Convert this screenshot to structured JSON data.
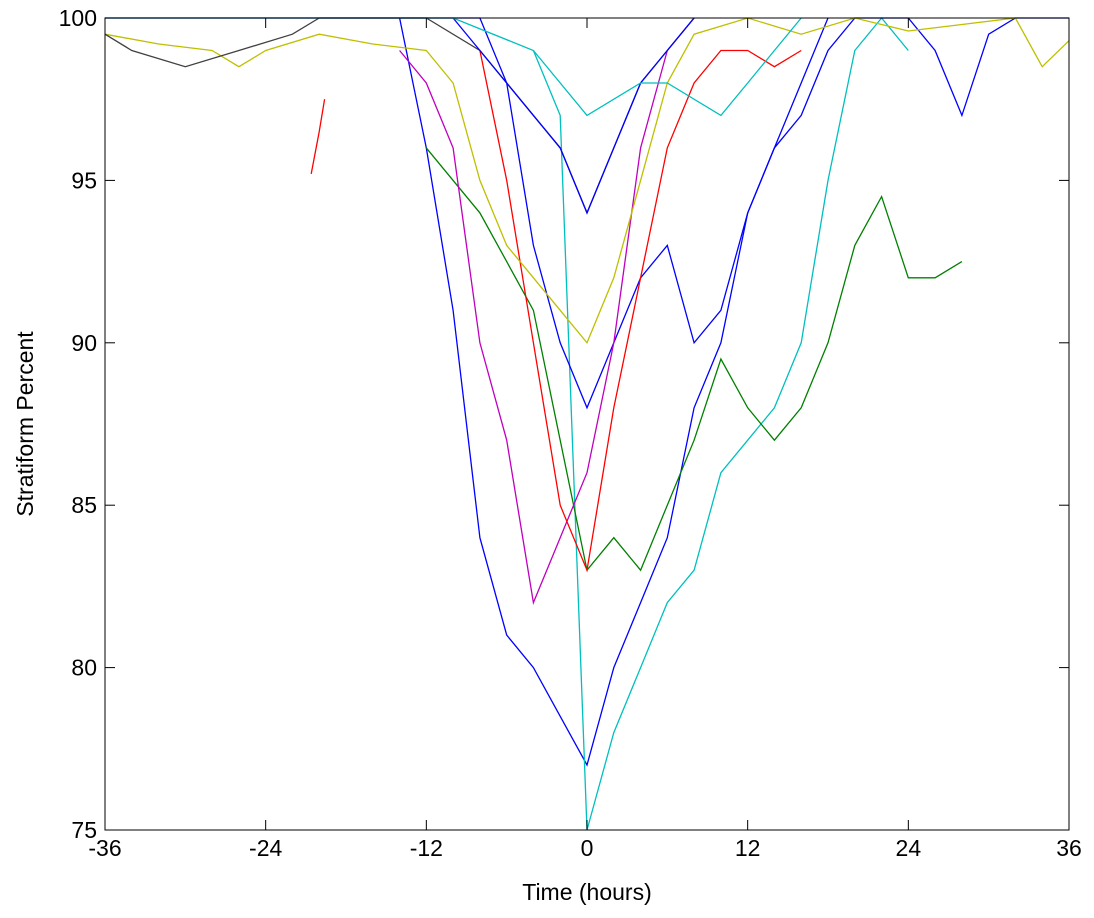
{
  "chart_data": {
    "type": "line",
    "x_label": "Time (hours)",
    "y_label": "Stratiform Percent",
    "xlim": [
      -36,
      36
    ],
    "xticks": [
      -36,
      -24,
      -12,
      0,
      12,
      24,
      36
    ],
    "ylim": [
      75,
      100
    ],
    "yticks": [
      75,
      80,
      85,
      90,
      95,
      100
    ],
    "grid": false,
    "series": [
      {
        "color": "#0000ff",
        "x": [
          -14,
          -12,
          -10,
          -8,
          -6,
          -4,
          -2,
          0,
          2,
          4,
          6,
          8,
          10,
          12,
          14,
          16,
          18
        ],
        "values": [
          100,
          96,
          91,
          84,
          81,
          80,
          78.5,
          77,
          80,
          82,
          84,
          88,
          90,
          94,
          96,
          98,
          100
        ]
      },
      {
        "color": "#00bfbf",
        "x": [
          -4,
          -2,
          0,
          2,
          4,
          6,
          8,
          10,
          12,
          14,
          16,
          18,
          20,
          22,
          24
        ],
        "values": [
          99,
          97,
          75,
          78,
          80,
          82,
          83,
          86,
          87,
          88,
          90,
          95,
          99,
          100,
          99
        ]
      },
      {
        "color": "#008000",
        "x": [
          -12,
          -10,
          -8,
          -6,
          -4,
          -2,
          0,
          2,
          4,
          6,
          8,
          10,
          12,
          14,
          16,
          18,
          20,
          22,
          24,
          26,
          28
        ],
        "values": [
          96,
          95,
          94,
          92.5,
          91,
          87,
          83,
          84,
          83,
          85,
          87,
          89.5,
          88,
          87,
          88,
          90,
          93,
          94.5,
          92,
          92,
          92.5
        ]
      },
      {
        "color": "#0000ff",
        "x": [
          -36,
          -30,
          -24,
          -18,
          -12,
          -8,
          -6,
          -4,
          -2,
          0,
          2,
          4,
          6,
          8,
          10,
          12,
          14,
          16,
          18,
          20,
          22,
          24,
          26,
          28,
          30,
          32,
          34,
          36
        ],
        "values": [
          100,
          100,
          100,
          100,
          100,
          100,
          98,
          93,
          90,
          88,
          90,
          92,
          93,
          90,
          91,
          94,
          96,
          97,
          99,
          100,
          100,
          100,
          99,
          97,
          99.5,
          100,
          100,
          100
        ]
      },
      {
        "color": "#bf00bf",
        "x": [
          -14,
          -12,
          -10,
          -8,
          -6,
          -4,
          -2,
          0,
          2,
          4,
          6,
          8
        ],
        "values": [
          99,
          98,
          96,
          90,
          87,
          82,
          84,
          86,
          90,
          96,
          99,
          100
        ]
      },
      {
        "color": "#ff0000",
        "x": [
          -8,
          -6,
          -4,
          -2,
          0,
          2,
          4,
          6,
          8,
          10,
          12,
          14,
          16
        ],
        "values": [
          99,
          95,
          90,
          85,
          83,
          88,
          92,
          96,
          98,
          99,
          99,
          98.5,
          99
        ]
      },
      {
        "color": "#bfbf00",
        "x": [
          -36,
          -32,
          -28,
          -26,
          -24,
          -20,
          -16,
          -12,
          -10,
          -8,
          -6,
          -4,
          -2,
          0,
          2,
          4,
          6,
          8,
          12,
          16,
          20,
          24,
          28,
          32,
          34,
          36
        ],
        "values": [
          99.5,
          99.2,
          99,
          98.5,
          99,
          99.5,
          99.2,
          99,
          98,
          95,
          93,
          92,
          91,
          90,
          92,
          95,
          98,
          99.5,
          100,
          99.5,
          100,
          99.6,
          99.8,
          100,
          98.5,
          99.3
        ]
      },
      {
        "color": "#404040",
        "x": [
          -36,
          -34,
          -30,
          -26,
          -22,
          -20,
          -12,
          -8,
          -4,
          -2,
          0,
          2,
          4,
          6,
          8
        ],
        "values": [
          99.5,
          99,
          98.5,
          99,
          99.5,
          100,
          100,
          99,
          97,
          96,
          94,
          96,
          98,
          99,
          100
        ]
      },
      {
        "color": "#ff0000",
        "x": [
          -20.6,
          -20,
          -19.6
        ],
        "values": [
          95.2,
          96.5,
          97.5
        ]
      },
      {
        "color": "#0000ff",
        "x": [
          -10,
          -6,
          -4,
          -2,
          0,
          2,
          4,
          6,
          8
        ],
        "values": [
          100,
          98,
          97,
          96,
          94,
          96,
          98,
          99,
          100
        ]
      },
      {
        "color": "#00bfbf",
        "x": [
          -36,
          -20,
          -10,
          -4,
          0,
          4,
          6,
          10,
          12,
          14,
          16
        ],
        "values": [
          100,
          100,
          100,
          99,
          97,
          98,
          98,
          97,
          98,
          99,
          100
        ]
      }
    ]
  }
}
